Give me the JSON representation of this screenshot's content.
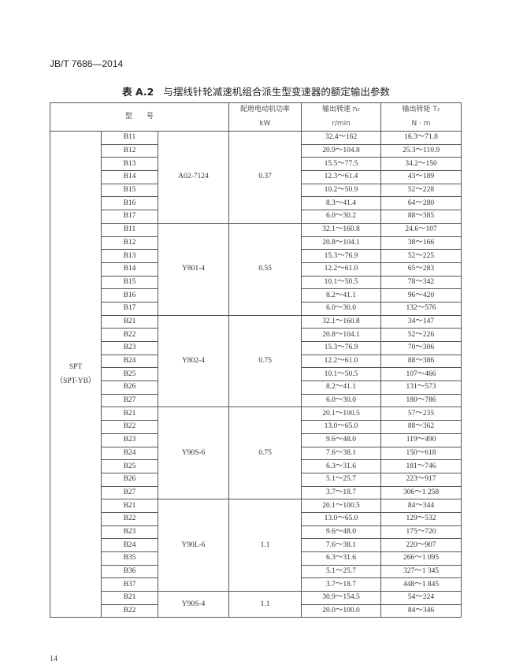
{
  "page_header": "JB/T 7686—2014",
  "table_title": {
    "label": "表 A.2",
    "text": "与摆线针轮减速机组合派生型变速器的额定输出参数"
  },
  "headers": {
    "model": "型　　号",
    "power": "配用电动机功率",
    "power_unit": "kW",
    "speed": "输出转速 n₂",
    "speed_unit": "r/min",
    "torque": "输出转矩 T₂",
    "torque_unit": "N · m"
  },
  "series": {
    "name": "SPT",
    "alt": "（SPT-YB）"
  },
  "groups": [
    {
      "motor": "A02-7124",
      "power": "0.37",
      "rows": [
        {
          "model": "B11",
          "speed": "32.4～162",
          "torque": "16.3～71.8"
        },
        {
          "model": "B12",
          "speed": "20.9～104.8",
          "torque": "25.3～110.9"
        },
        {
          "model": "B13",
          "speed": "15.5～77.5",
          "torque": "34.2～150"
        },
        {
          "model": "B14",
          "speed": "12.3～61.4",
          "torque": "43～189"
        },
        {
          "model": "B15",
          "speed": "10.2～50.9",
          "torque": "52～228"
        },
        {
          "model": "B16",
          "speed": "8.3～41.4",
          "torque": "64～280"
        },
        {
          "model": "B17",
          "speed": "6.0～30.2",
          "torque": "88～385"
        }
      ]
    },
    {
      "motor": "Y801-4",
      "power": "0.55",
      "rows": [
        {
          "model": "B11",
          "speed": "32.1～160.8",
          "torque": "24.6～107"
        },
        {
          "model": "B12",
          "speed": "20.8～104.1",
          "torque": "38～166"
        },
        {
          "model": "B13",
          "speed": "15.3～76.9",
          "torque": "52～225"
        },
        {
          "model": "B14",
          "speed": "12.2～61.0",
          "torque": "65～283"
        },
        {
          "model": "B15",
          "speed": "10.1～50.5",
          "torque": "78～342"
        },
        {
          "model": "B16",
          "speed": "8.2～41.1",
          "torque": "96～420"
        },
        {
          "model": "B17",
          "speed": "6.0～30.0",
          "torque": "132～576"
        }
      ]
    },
    {
      "motor": "Y802-4",
      "power": "0.75",
      "rows": [
        {
          "model": "B21",
          "speed": "32.1～160.8",
          "torque": "34～147"
        },
        {
          "model": "B22",
          "speed": "20.8～104.1",
          "torque": "52～226"
        },
        {
          "model": "B23",
          "speed": "15.3～76.9",
          "torque": "70～306"
        },
        {
          "model": "B24",
          "speed": "12.2～61.0",
          "torque": "88～386"
        },
        {
          "model": "B25",
          "speed": "10.1～50.5",
          "torque": "107～466"
        },
        {
          "model": "B26",
          "speed": "8.2～41.1",
          "torque": "131～573"
        },
        {
          "model": "B27",
          "speed": "6.0～30.0",
          "torque": "180～786"
        }
      ]
    },
    {
      "motor": "Y90S-6",
      "power": "0.75",
      "rows": [
        {
          "model": "B21",
          "speed": "20.1～100.5",
          "torque": "57～235"
        },
        {
          "model": "B22",
          "speed": "13.0～65.0",
          "torque": "88～362"
        },
        {
          "model": "B23",
          "speed": "9.6～48.0",
          "torque": "119～490"
        },
        {
          "model": "B24",
          "speed": "7.6～38.1",
          "torque": "150～618"
        },
        {
          "model": "B25",
          "speed": "6.3～31.6",
          "torque": "181～746"
        },
        {
          "model": "B26",
          "speed": "5.1～25.7",
          "torque": "223～917"
        },
        {
          "model": "B27",
          "speed": "3.7～18.7",
          "torque": "306～1 258"
        }
      ]
    },
    {
      "motor": "Y90L-6",
      "power": "1.1",
      "rows": [
        {
          "model": "B21",
          "speed": "20.1～100.5",
          "torque": "84～344"
        },
        {
          "model": "B22",
          "speed": "13.0～65.0",
          "torque": "129～532"
        },
        {
          "model": "B23",
          "speed": "9.6～48.0",
          "torque": "175～720"
        },
        {
          "model": "B24",
          "speed": "7.6～38.1",
          "torque": "220～907"
        },
        {
          "model": "B35",
          "speed": "6.3～31.6",
          "torque": "266～1 095"
        },
        {
          "model": "B36",
          "speed": "5.1～25.7",
          "torque": "327～1 345"
        },
        {
          "model": "B37",
          "speed": "3.7～18.7",
          "torque": "448～1 845"
        }
      ]
    },
    {
      "motor": "Y90S-4",
      "power": "1.1",
      "rows": [
        {
          "model": "B21",
          "speed": "30.9～154.5",
          "torque": "54～224"
        },
        {
          "model": "B22",
          "speed": "20.0～100.0",
          "torque": "84～346"
        }
      ]
    }
  ],
  "page_number": "14"
}
